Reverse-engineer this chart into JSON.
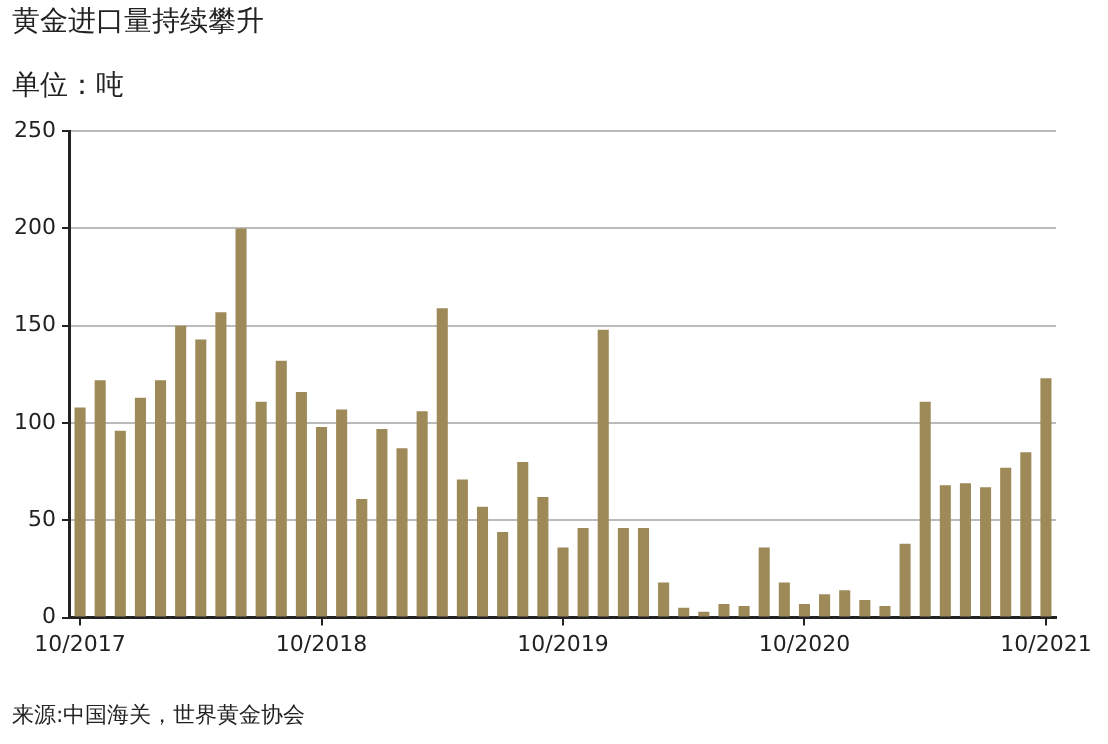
{
  "chart_data": {
    "type": "bar",
    "title": "黄金进口量持续攀升",
    "subtitle": "单位：吨",
    "categories": [
      "10/2017",
      null,
      null,
      null,
      null,
      null,
      null,
      null,
      null,
      null,
      null,
      null,
      "10/2018",
      null,
      null,
      null,
      null,
      null,
      null,
      null,
      null,
      null,
      null,
      null,
      "10/2019",
      null,
      null,
      null,
      null,
      null,
      null,
      null,
      null,
      null,
      null,
      null,
      "10/2020",
      null,
      null,
      null,
      null,
      null,
      null,
      null,
      null,
      null,
      null,
      null,
      "10/2021"
    ],
    "values": [
      108,
      122,
      96,
      113,
      122,
      150,
      143,
      157,
      200,
      111,
      132,
      116,
      98,
      107,
      61,
      97,
      87,
      106,
      159,
      71,
      57,
      44,
      80,
      62,
      36,
      46,
      148,
      46,
      46,
      18,
      5,
      3,
      7,
      6,
      36,
      18,
      7,
      12,
      14,
      9,
      6,
      38,
      111,
      68,
      69,
      67,
      77,
      85,
      123
    ],
    "color": "#9e8a58",
    "ylim": [
      0,
      250
    ],
    "yticks": [
      0,
      50,
      100,
      150,
      200,
      250
    ],
    "grid": "y",
    "legend": false,
    "annotations": [
      "来源:中国海关，世界黄金协会"
    ]
  }
}
